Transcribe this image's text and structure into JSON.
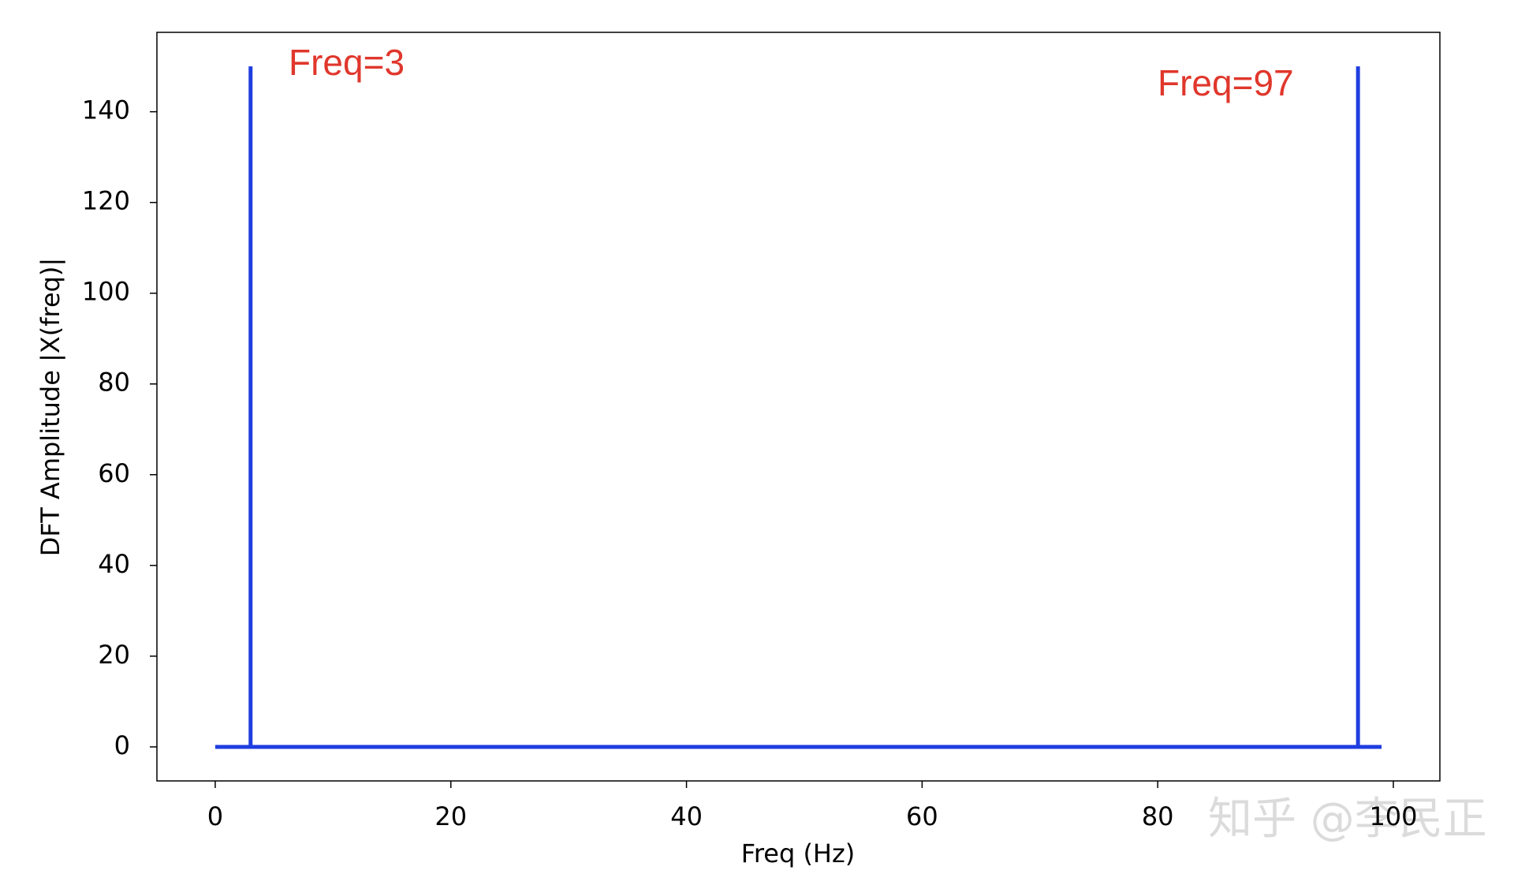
{
  "chart_data": {
    "type": "stem",
    "xlabel": "Freq (Hz)",
    "ylabel": "DFT Amplitude |X(freq)|",
    "x": [
      0,
      1,
      2,
      3,
      4,
      5,
      6,
      7,
      8,
      9,
      10,
      11,
      12,
      13,
      14,
      15,
      16,
      17,
      18,
      19,
      20,
      21,
      22,
      23,
      24,
      25,
      26,
      27,
      28,
      29,
      30,
      31,
      32,
      33,
      34,
      35,
      36,
      37,
      38,
      39,
      40,
      41,
      42,
      43,
      44,
      45,
      46,
      47,
      48,
      49,
      50,
      51,
      52,
      53,
      54,
      55,
      56,
      57,
      58,
      59,
      60,
      61,
      62,
      63,
      64,
      65,
      66,
      67,
      68,
      69,
      70,
      71,
      72,
      73,
      74,
      75,
      76,
      77,
      78,
      79,
      80,
      81,
      82,
      83,
      84,
      85,
      86,
      87,
      88,
      89,
      90,
      91,
      92,
      93,
      94,
      95,
      96,
      97,
      98,
      99
    ],
    "values": [
      0,
      0,
      0,
      150,
      0,
      0,
      0,
      0,
      0,
      0,
      0,
      0,
      0,
      0,
      0,
      0,
      0,
      0,
      0,
      0,
      0,
      0,
      0,
      0,
      0,
      0,
      0,
      0,
      0,
      0,
      0,
      0,
      0,
      0,
      0,
      0,
      0,
      0,
      0,
      0,
      0,
      0,
      0,
      0,
      0,
      0,
      0,
      0,
      0,
      0,
      0,
      0,
      0,
      0,
      0,
      0,
      0,
      0,
      0,
      0,
      0,
      0,
      0,
      0,
      0,
      0,
      0,
      0,
      0,
      0,
      0,
      0,
      0,
      0,
      0,
      0,
      0,
      0,
      0,
      0,
      0,
      0,
      0,
      0,
      0,
      0,
      0,
      0,
      0,
      0,
      0,
      0,
      0,
      0,
      0,
      0,
      0,
      150,
      0,
      0
    ],
    "color": "#1f3ee0",
    "xlim": [
      -4.95,
      103.95
    ],
    "ylim": [
      -7.5,
      157.5
    ],
    "xticks": [
      0,
      20,
      40,
      60,
      80,
      100
    ],
    "yticks": [
      0,
      20,
      40,
      60,
      80,
      100,
      120,
      140
    ],
    "annotations": [
      "Freq=3",
      "Freq=97"
    ],
    "watermark": "知乎 @李民正"
  }
}
